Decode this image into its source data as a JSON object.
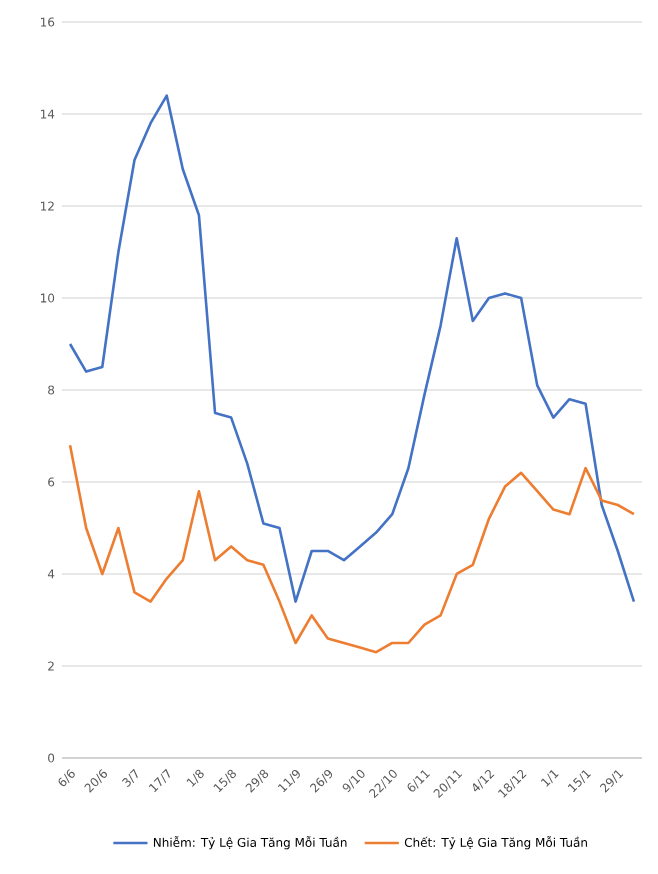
{
  "chart_data": {
    "type": "line",
    "categories": [
      "6/6",
      null,
      "20/6",
      null,
      "3/7",
      null,
      "17/7",
      null,
      "1/8",
      null,
      "15/8",
      null,
      "29/8",
      null,
      "11/9",
      null,
      "26/9",
      null,
      "9/10",
      null,
      "22/10",
      null,
      "6/11",
      null,
      "20/11",
      null,
      "4/12",
      null,
      "18/12",
      null,
      "1/1",
      null,
      "15/1",
      null,
      "29/1",
      null
    ],
    "series": [
      {
        "name": "Nhiễm: Tỷ Lệ Gia Tăng   Mỗi Tuần",
        "color": "#4472c4",
        "values": [
          9.0,
          8.4,
          8.5,
          11.0,
          13.0,
          13.8,
          14.4,
          12.8,
          11.8,
          7.5,
          7.4,
          6.4,
          5.1,
          5.0,
          3.4,
          4.5,
          4.5,
          4.3,
          4.6,
          4.9,
          5.3,
          6.3,
          7.9,
          9.4,
          11.3,
          9.5,
          10.0,
          10.1,
          10.0,
          8.1,
          7.4,
          7.8,
          7.7,
          5.5,
          4.5,
          3.4
        ]
      },
      {
        "name": "Chết: Tỷ Lệ Gia Tăng Mỗi Tuần",
        "color": "#ed7d31",
        "values": [
          6.8,
          5.0,
          4.0,
          5.0,
          3.6,
          3.4,
          3.9,
          4.3,
          5.8,
          4.3,
          4.6,
          4.3,
          4.2,
          3.4,
          2.5,
          3.1,
          2.6,
          2.5,
          2.4,
          2.3,
          2.5,
          2.5,
          2.9,
          3.1,
          4.0,
          4.2,
          5.2,
          5.9,
          6.2,
          5.8,
          5.4,
          5.3,
          6.3,
          5.6,
          5.5,
          5.3
        ]
      }
    ],
    "ylim": [
      0,
      16
    ],
    "yticks": [
      0,
      2,
      4,
      6,
      8,
      10,
      12,
      14,
      16
    ],
    "grid": "y",
    "legend": "bottom",
    "marker": "none",
    "line_style": "solid"
  }
}
